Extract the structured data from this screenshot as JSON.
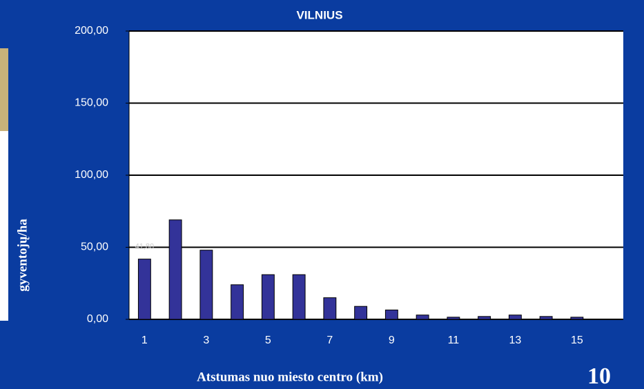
{
  "chart_data": {
    "type": "bar",
    "title": "VILNIUS",
    "x_label": "Atstumas nuo miesto centro (km)",
    "y_label": "gyventojų/ha",
    "page_number": "10",
    "categories": [
      "1",
      null,
      "3",
      null,
      "5",
      null,
      "7",
      null,
      "9",
      null,
      "11",
      null,
      "13",
      null,
      "15",
      null
    ],
    "values": [
      41.8,
      69,
      48,
      24,
      31,
      31,
      15,
      9,
      6.5,
      3,
      1.5,
      2,
      3,
      2,
      1.5,
      0
    ],
    "value_labels": [
      "41,80",
      null,
      null,
      null,
      null,
      null,
      null,
      null,
      null,
      null,
      null,
      null,
      null,
      null,
      null,
      null
    ],
    "color": "#333399",
    "ylim": [
      0,
      200
    ],
    "yticks": [
      {
        "value": 0,
        "label": "0,00"
      },
      {
        "value": 50,
        "label": "50,00"
      },
      {
        "value": 100,
        "label": "100,00"
      },
      {
        "value": 150,
        "label": "150,00"
      },
      {
        "value": 200,
        "label": "200,00"
      }
    ],
    "grid": true
  }
}
